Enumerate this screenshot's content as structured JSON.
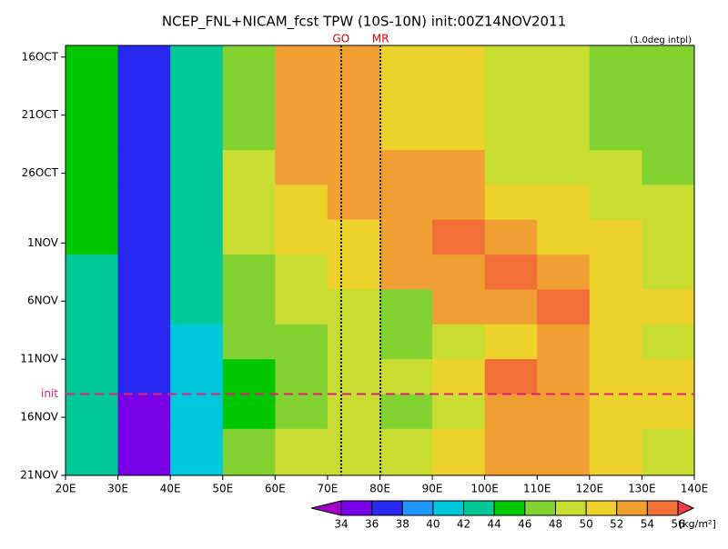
{
  "chart_data": {
    "type": "heatmap",
    "title": "NCEP_FNL+NICAM_fcst TPW (10S-10N) init:00Z14NOV2011",
    "subtitle": "(1.0deg intpl)",
    "units": "[kg/m²]",
    "xbins": [
      20,
      30,
      40,
      50,
      60,
      70,
      80,
      90,
      100,
      110,
      120,
      130,
      140
    ],
    "ybins": [
      -1,
      8,
      11,
      14,
      17,
      20,
      23,
      26,
      29,
      32,
      36
    ],
    "values": [
      [
        44,
        36,
        42,
        46,
        52,
        52,
        51,
        50,
        48,
        49,
        47,
        46
      ],
      [
        44,
        36,
        42,
        48,
        52,
        53,
        53,
        52,
        49,
        49,
        48,
        47
      ],
      [
        44,
        36,
        43,
        48,
        51,
        52,
        53,
        53,
        51,
        50,
        49,
        48
      ],
      [
        44,
        36,
        42,
        48,
        50,
        51,
        52,
        54,
        53,
        51,
        50,
        49
      ],
      [
        43,
        36,
        42,
        47,
        49,
        50,
        52,
        53,
        54,
        53,
        50,
        49
      ],
      [
        43,
        36,
        42,
        46,
        48,
        49,
        47,
        52,
        53,
        55,
        51,
        50
      ],
      [
        42,
        36,
        41,
        46,
        47,
        48,
        46,
        48,
        51,
        52,
        50,
        49
      ],
      [
        42,
        37,
        41,
        45,
        47,
        49,
        49,
        50,
        54,
        52,
        51,
        50
      ],
      [
        42,
        35,
        40,
        45,
        46,
        48,
        47,
        49,
        53,
        53,
        51,
        50
      ],
      [
        43,
        35,
        40,
        46,
        48,
        49,
        48,
        50,
        52,
        52,
        50,
        49
      ]
    ],
    "xlim": [
      20,
      140
    ],
    "ylim": [
      -1,
      36
    ],
    "xticks": [
      {
        "value": 20,
        "label": "20E"
      },
      {
        "value": 30,
        "label": "30E"
      },
      {
        "value": 40,
        "label": "40E"
      },
      {
        "value": 50,
        "label": "50E"
      },
      {
        "value": 60,
        "label": "60E"
      },
      {
        "value": 70,
        "label": "70E"
      },
      {
        "value": 80,
        "label": "80E"
      },
      {
        "value": 90,
        "label": "90E"
      },
      {
        "value": 100,
        "label": "100E"
      },
      {
        "value": 110,
        "label": "110E"
      },
      {
        "value": 120,
        "label": "120E"
      },
      {
        "value": 130,
        "label": "130E"
      },
      {
        "value": 140,
        "label": "140E"
      }
    ],
    "yticks": [
      {
        "value": 0,
        "label": "16OCT"
      },
      {
        "value": 5,
        "label": "21OCT"
      },
      {
        "value": 10,
        "label": "26OCT"
      },
      {
        "value": 16,
        "label": "1NOV"
      },
      {
        "value": 21,
        "label": "6NOV"
      },
      {
        "value": 26,
        "label": "11NOV"
      },
      {
        "value": 31,
        "label": "16NOV"
      },
      {
        "value": 36,
        "label": "21NOV"
      }
    ],
    "levels": [
      34,
      36,
      38,
      40,
      42,
      44,
      46,
      48,
      50,
      52,
      54,
      56
    ],
    "colors": [
      "#a000c8",
      "#7800e6",
      "#2828f0",
      "#1e96ff",
      "#00c8dc",
      "#00c896",
      "#00c800",
      "#82d232",
      "#c8dc32",
      "#ecd22a",
      "#f0a032",
      "#f07038",
      "#f03c46",
      "#f01ea0"
    ],
    "markers": [
      {
        "label": "GO",
        "x": 72.6
      },
      {
        "label": "MR",
        "x": 80.1
      }
    ],
    "init": {
      "label": "init",
      "y": 29
    }
  }
}
